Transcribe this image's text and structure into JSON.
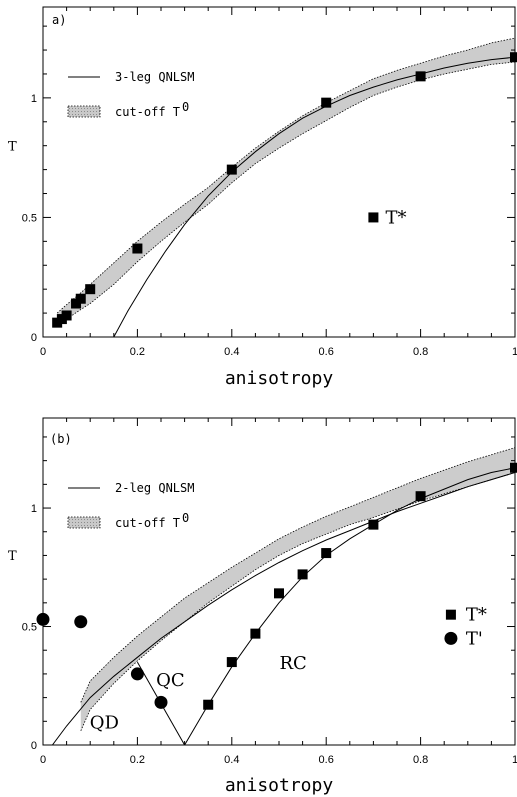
{
  "chart_data": [
    {
      "type": "line",
      "panel_label": "a)",
      "xlabel": "anisotropy",
      "ylabel": "T",
      "xlim": [
        0,
        1
      ],
      "ylim": [
        0,
        1.38
      ],
      "x_ticks": [
        "0",
        "0.2",
        "0.4",
        "0.6",
        "0.8",
        "1"
      ],
      "y_ticks": [
        "0",
        "0.5",
        "1"
      ],
      "x_tick_values": [
        0,
        0.2,
        0.4,
        0.6,
        0.8,
        1
      ],
      "y_tick_values": [
        0,
        0.5,
        1
      ],
      "legend": [
        {
          "label": "3-leg QNLSM",
          "style": "line"
        },
        {
          "label": "cut-off T",
          "superscript": "0",
          "style": "band"
        }
      ],
      "curve": {
        "name": "3-leg QNLSM",
        "x": [
          0.15,
          0.18,
          0.22,
          0.26,
          0.3,
          0.35,
          0.4,
          0.45,
          0.5,
          0.55,
          0.6,
          0.65,
          0.7,
          0.75,
          0.8,
          0.85,
          0.9,
          0.95,
          1.0
        ],
        "y": [
          0.0,
          0.11,
          0.24,
          0.36,
          0.47,
          0.59,
          0.69,
          0.775,
          0.85,
          0.915,
          0.965,
          1.01,
          1.045,
          1.075,
          1.1,
          1.125,
          1.145,
          1.16,
          1.17
        ]
      },
      "band": {
        "name": "cut-off T0",
        "x": [
          0.03,
          0.05,
          0.08,
          0.1,
          0.15,
          0.2,
          0.25,
          0.3,
          0.35,
          0.4,
          0.45,
          0.5,
          0.55,
          0.6,
          0.65,
          0.7,
          0.75,
          0.8,
          0.85,
          0.9,
          0.95,
          1.0
        ],
        "upper": [
          0.1,
          0.135,
          0.185,
          0.22,
          0.31,
          0.4,
          0.48,
          0.555,
          0.625,
          0.71,
          0.79,
          0.86,
          0.925,
          0.98,
          1.03,
          1.08,
          1.115,
          1.145,
          1.175,
          1.2,
          1.23,
          1.25
        ],
        "lower": [
          0.05,
          0.075,
          0.115,
          0.14,
          0.22,
          0.315,
          0.4,
          0.48,
          0.555,
          0.645,
          0.725,
          0.79,
          0.85,
          0.905,
          0.96,
          1.01,
          1.045,
          1.075,
          1.1,
          1.12,
          1.14,
          1.15
        ]
      },
      "series": [
        {
          "name": "T*",
          "marker": "square",
          "x": [
            0.03,
            0.04,
            0.05,
            0.07,
            0.08,
            0.1,
            0.2,
            0.4,
            0.6,
            0.8,
            1.0
          ],
          "y": [
            0.06,
            0.075,
            0.09,
            0.14,
            0.16,
            0.2,
            0.37,
            0.7,
            0.98,
            1.09,
            1.17
          ]
        }
      ],
      "annotations": [
        {
          "text": "T*",
          "x": 0.73,
          "y": 0.5,
          "marker": "square",
          "marker_x": 0.7
        }
      ]
    },
    {
      "type": "line",
      "panel_label": "(b)",
      "xlabel": "anisotropy",
      "ylabel": "T",
      "xlim": [
        0,
        1
      ],
      "ylim": [
        0,
        1.38
      ],
      "x_ticks": [
        "0",
        "0.2",
        "0.4",
        "0.6",
        "0.8",
        "1"
      ],
      "y_ticks": [
        "0",
        "0.5",
        "1"
      ],
      "x_tick_values": [
        0,
        0.2,
        0.4,
        0.6,
        0.8,
        1
      ],
      "y_tick_values": [
        0,
        0.5,
        1
      ],
      "legend": [
        {
          "label": "2-leg QNLSM",
          "style": "line"
        },
        {
          "label": "cut-off T",
          "superscript": "0",
          "style": "band"
        }
      ],
      "curves": [
        {
          "name": "2-leg QNLSM",
          "x": [
            0.02,
            0.05,
            0.1,
            0.15,
            0.2,
            0.25,
            0.3,
            0.35,
            0.4,
            0.45,
            0.5,
            0.55,
            0.6,
            0.65,
            0.7,
            0.75,
            0.8,
            0.85,
            0.9,
            0.95,
            1.0
          ],
          "y": [
            0.0,
            0.08,
            0.2,
            0.29,
            0.37,
            0.45,
            0.52,
            0.59,
            0.655,
            0.715,
            0.77,
            0.82,
            0.865,
            0.905,
            0.945,
            0.985,
            1.02,
            1.055,
            1.09,
            1.12,
            1.15
          ]
        },
        {
          "name": "QD-QC boundary",
          "x": [
            0.2,
            0.3
          ],
          "y": [
            0.35,
            0.0
          ]
        },
        {
          "name": "QC-RC boundary",
          "x": [
            0.3,
            0.35,
            0.4,
            0.45,
            0.5,
            0.55,
            0.6,
            0.65,
            0.7,
            0.75,
            0.8,
            0.85,
            0.9,
            0.95,
            1.0
          ],
          "y": [
            0.0,
            0.17,
            0.33,
            0.47,
            0.6,
            0.71,
            0.8,
            0.87,
            0.93,
            0.99,
            1.04,
            1.08,
            1.12,
            1.15,
            1.17
          ]
        }
      ],
      "band": {
        "name": "cut-off T0",
        "x": [
          0.08,
          0.1,
          0.15,
          0.2,
          0.25,
          0.3,
          0.35,
          0.4,
          0.45,
          0.5,
          0.55,
          0.6,
          0.65,
          0.7,
          0.75,
          0.8,
          0.85,
          0.9,
          0.95,
          1.0
        ],
        "upper": [
          0.18,
          0.27,
          0.37,
          0.46,
          0.54,
          0.62,
          0.685,
          0.75,
          0.81,
          0.87,
          0.92,
          0.965,
          1.005,
          1.045,
          1.085,
          1.125,
          1.16,
          1.195,
          1.225,
          1.255
        ],
        "lower": [
          0.06,
          0.15,
          0.26,
          0.355,
          0.44,
          0.52,
          0.6,
          0.67,
          0.74,
          0.8,
          0.85,
          0.89,
          0.93,
          0.96,
          0.995,
          1.03,
          1.06,
          1.09,
          1.12,
          1.15
        ]
      },
      "series": [
        {
          "name": "T*",
          "marker": "square",
          "x": [
            0.35,
            0.4,
            0.45,
            0.5,
            0.55,
            0.6,
            0.7,
            0.8,
            1.0
          ],
          "y": [
            0.17,
            0.35,
            0.47,
            0.64,
            0.72,
            0.81,
            0.93,
            1.05,
            1.17
          ]
        },
        {
          "name": "T'",
          "marker": "circle",
          "x": [
            0.0,
            0.08,
            0.2,
            0.25
          ],
          "y": [
            0.53,
            0.52,
            0.3,
            0.18
          ]
        }
      ],
      "legend_markers": [
        {
          "text": "T*",
          "marker": "square",
          "x": 0.86,
          "y": 0.55
        },
        {
          "text": "T'",
          "marker": "circle",
          "x": 0.86,
          "y": 0.45
        }
      ],
      "region_labels": [
        {
          "text": "QD",
          "x": 0.13,
          "y": 0.07
        },
        {
          "text": "QC",
          "x": 0.27,
          "y": 0.25
        },
        {
          "text": "RC",
          "x": 0.53,
          "y": 0.32
        }
      ]
    }
  ]
}
